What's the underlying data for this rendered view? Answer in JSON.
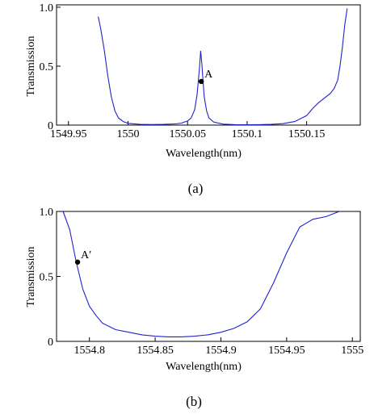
{
  "chart_data": [
    {
      "type": "line",
      "caption": "(a)",
      "xlabel": "Wavelength(nm)",
      "ylabel": "Transmission",
      "xlim": [
        1549.94,
        1550.195
      ],
      "ylim": [
        0,
        1.02
      ],
      "xticks": [
        1549.95,
        1550,
        1550.05,
        1550.1,
        1550.15
      ],
      "xtick_labels": [
        "1549.95",
        "1550",
        "1550.05",
        "1550.1",
        "1550.15"
      ],
      "yticks": [
        0,
        0.5,
        1.0
      ],
      "ytick_labels": [
        "0",
        "0.5",
        "1.0"
      ],
      "line_color": "#2222cc",
      "grid": false,
      "series": [
        {
          "x": [
            1549.975,
            1549.977,
            1549.98,
            1549.983,
            1549.986,
            1549.989,
            1549.992,
            1549.996,
            1550.0,
            1550.01,
            1550.02,
            1550.03,
            1550.04,
            1550.045,
            1550.05,
            1550.053,
            1550.056,
            1550.058,
            1550.06,
            1550.061,
            1550.062,
            1550.063,
            1550.064,
            1550.066,
            1550.068,
            1550.072,
            1550.08,
            1550.09,
            1550.1,
            1550.11,
            1550.12,
            1550.13,
            1550.14,
            1550.15,
            1550.155,
            1550.16,
            1550.165,
            1550.17,
            1550.173,
            1550.176,
            1550.178,
            1550.18,
            1550.182,
            1550.184
          ],
          "y": [
            0.92,
            0.82,
            0.64,
            0.42,
            0.24,
            0.12,
            0.06,
            0.03,
            0.015,
            0.006,
            0.005,
            0.006,
            0.01,
            0.017,
            0.035,
            0.06,
            0.13,
            0.26,
            0.48,
            0.63,
            0.52,
            0.37,
            0.24,
            0.12,
            0.06,
            0.025,
            0.008,
            0.004,
            0.003,
            0.004,
            0.006,
            0.012,
            0.03,
            0.08,
            0.14,
            0.19,
            0.23,
            0.27,
            0.31,
            0.38,
            0.5,
            0.66,
            0.85,
            0.99
          ]
        }
      ],
      "annotations": [
        {
          "label": "A",
          "x": 1550.0615,
          "y": 0.37
        }
      ]
    },
    {
      "type": "line",
      "caption": "(b)",
      "xlabel": "Wavelength(nm)",
      "ylabel": "Transmission",
      "xlim": [
        1554.775,
        1555.006
      ],
      "ylim": [
        0,
        1.0
      ],
      "xticks": [
        1554.8,
        1554.85,
        1554.9,
        1554.95,
        1555
      ],
      "xtick_labels": [
        "1554.8",
        "1554.85",
        "1554.9",
        "1554.95",
        "1555"
      ],
      "yticks": [
        0,
        0.5,
        1.0
      ],
      "ytick_labels": [
        "0",
        "0.5",
        "1.0"
      ],
      "line_color": "#2222cc",
      "grid": false,
      "series": [
        {
          "x": [
            1554.78,
            1554.785,
            1554.79,
            1554.795,
            1554.8,
            1554.805,
            1554.81,
            1554.82,
            1554.83,
            1554.84,
            1554.85,
            1554.86,
            1554.87,
            1554.88,
            1554.89,
            1554.9,
            1554.91,
            1554.92,
            1554.93,
            1554.94,
            1554.95,
            1554.96,
            1554.97,
            1554.98,
            1554.99
          ],
          "y": [
            1.0,
            0.86,
            0.61,
            0.4,
            0.27,
            0.2,
            0.14,
            0.09,
            0.07,
            0.05,
            0.04,
            0.035,
            0.035,
            0.04,
            0.05,
            0.07,
            0.1,
            0.15,
            0.25,
            0.45,
            0.68,
            0.88,
            0.94,
            0.96,
            1.0
          ]
        }
      ],
      "annotations": [
        {
          "label": "A′",
          "x": 1554.791,
          "y": 0.61
        }
      ]
    }
  ]
}
